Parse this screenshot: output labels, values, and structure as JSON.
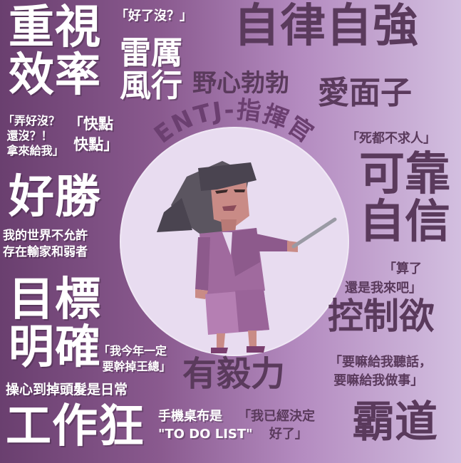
{
  "phrases": {
    "zhongshi": "重視\n效率",
    "haole_mei": "「好了沒？」",
    "leili": "雷厲\n風行",
    "zilv": "自律自強",
    "yexin": "野心勃勃",
    "aimianzi": "愛面子",
    "nonghao": "「弄好沒？\n 還沒？！\n 拿來給我」",
    "kuaidian": "「快點\n 快點」",
    "sidu": "「死都不求人」",
    "kekao": "可靠\n自信",
    "haosheng": "好勝",
    "shijie": "我的世界不允許\n存在輸家和弱者",
    "suanle": "「算了\n還是我來吧」",
    "mubiao": "目標\n明確",
    "kongzhi": "控制欲",
    "jinnian": "「我今年一定\n 要幹掉王總」",
    "yaoma": "「要嘛給我聽話，\n 要嘛給我做事」",
    "youyili": "有毅力",
    "caoxin": "操心到掉頭髮是日常",
    "gongzuo": "工作狂",
    "shouji": "手機桌布是\n\"TO DO LIST\"",
    "yijing": "「我已經決定\n       好了」",
    "badao": "霸道"
  },
  "title": "ENTJ-指揮官",
  "colors": {
    "bg_left": "#6a3f6f",
    "bg_right": "#d3bfe0",
    "circle": "#e8dcf0",
    "title": "#6b3f70",
    "dark_text": "#5a3a5c"
  },
  "icons": {
    "character": "businesswoman-pointing-icon"
  }
}
